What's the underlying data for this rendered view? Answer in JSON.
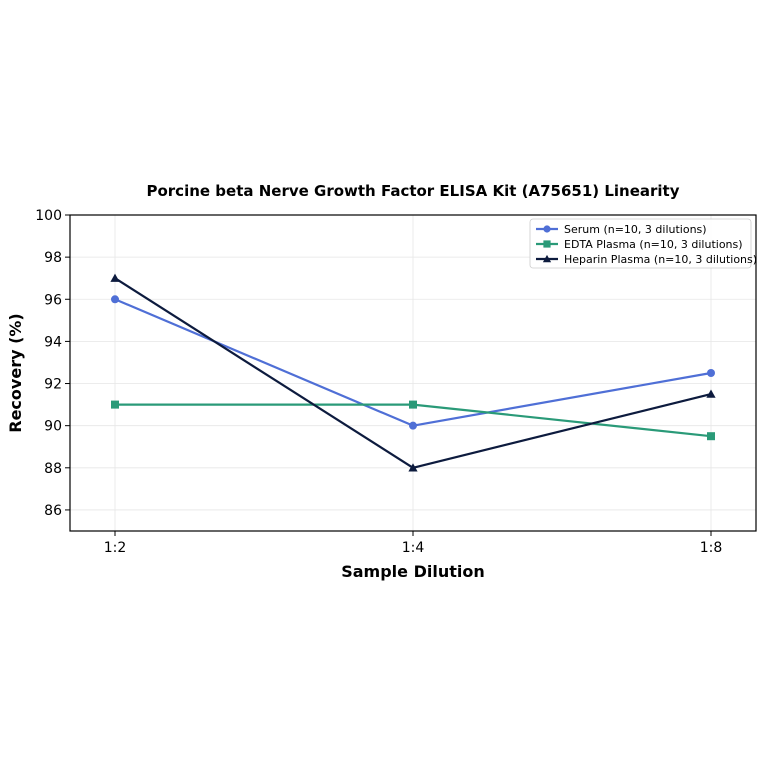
{
  "chart_data": {
    "type": "line",
    "title": "Porcine beta Nerve Growth Factor ELISA Kit (A75651) Linearity",
    "xlabel": "Sample Dilution",
    "ylabel": "Recovery (%)",
    "categories": [
      "1:2",
      "1:4",
      "1:8"
    ],
    "ylim": [
      85,
      100
    ],
    "yticks": [
      86,
      88,
      90,
      92,
      94,
      96,
      98,
      100
    ],
    "grid": true,
    "legend_position": "top-right",
    "series": [
      {
        "name": "Serum (n=10, 3 dilutions)",
        "values": [
          96,
          90,
          92.5
        ],
        "color": "#4f6fd6",
        "marker": "circle"
      },
      {
        "name": "EDTA Plasma (n=10, 3 dilutions)",
        "values": [
          91,
          91,
          89.5
        ],
        "color": "#2a9a78",
        "marker": "square"
      },
      {
        "name": "Heparin Plasma (n=10, 3 dilutions)",
        "values": [
          97,
          88,
          91.5
        ],
        "color": "#0d1b3e",
        "marker": "triangle"
      }
    ]
  }
}
